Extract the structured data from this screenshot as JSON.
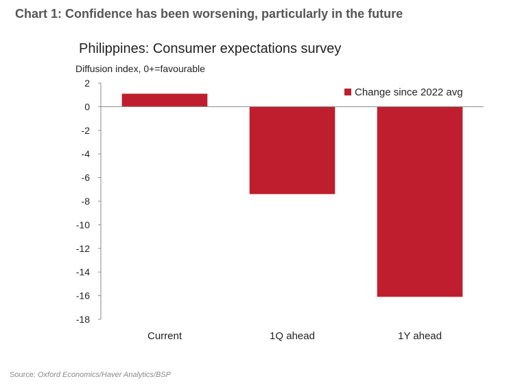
{
  "heading": "Chart 1: Confidence has been worsening, particularly in the future",
  "source": {
    "label": "Source:",
    "text": "Oxford Economics/Haver Analytics/BSP"
  },
  "chart_data": {
    "type": "bar",
    "title": "Philippines: Consumer expectations survey",
    "ylabel": "Diffusion index, 0+=favourable",
    "xlabel": "",
    "categories": [
      "Current",
      "1Q ahead",
      "1Y ahead"
    ],
    "series": [
      {
        "name": "Change since 2022 avg",
        "values": [
          1.1,
          -7.4,
          -16.1
        ],
        "color": "#be1e2d"
      }
    ],
    "ylim": [
      -18,
      2
    ],
    "yticks": [
      2,
      0,
      -2,
      -4,
      -6,
      -8,
      -10,
      -12,
      -14,
      -16,
      -18
    ],
    "grid": false,
    "legend": "top-right"
  }
}
